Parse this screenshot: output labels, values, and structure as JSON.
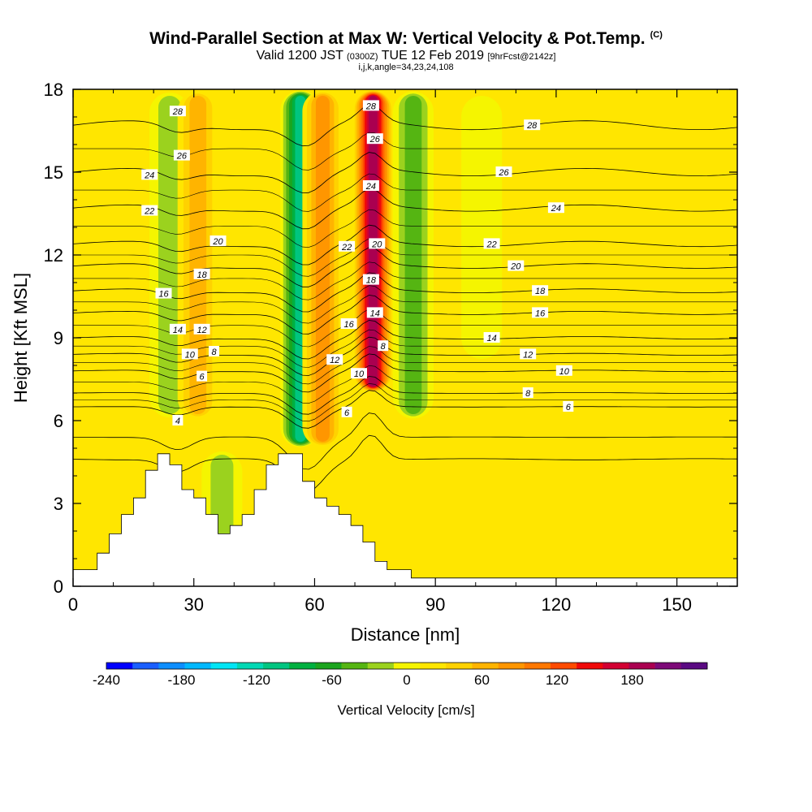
{
  "title": {
    "main": "Wind-Parallel Section at Max W: Vertical Velocity & Pot.Temp.",
    "main_suffix": "(C)",
    "valid_prefix": "Valid 1200 JST",
    "valid_utc": "(0300Z)",
    "valid_date": "TUE 12 Feb 2019",
    "forecast": "[9hrFcst@2142z]",
    "section_info": "i,j,k,angle=34,23,24,108"
  },
  "chart_data": {
    "type": "heatmap",
    "xlabel": "Distance [nm]",
    "ylabel": "Height [Kft MSL]",
    "xlim": [
      0,
      165
    ],
    "ylim": [
      0,
      18
    ],
    "x_ticks": [
      "0",
      "30",
      "60",
      "90",
      "120",
      "150"
    ],
    "y_ticks": [
      "0",
      "3",
      "6",
      "9",
      "12",
      "15",
      "18"
    ],
    "colorbar": {
      "label": "Vertical Velocity [cm/s]",
      "min": -240,
      "max": 220,
      "step": 20,
      "tick_labels": [
        "-240",
        "-180",
        "-120",
        "-60",
        "0",
        "60",
        "120",
        "180"
      ],
      "colors": [
        "#0000ff",
        "#1a5fff",
        "#0d8eff",
        "#00b8ff",
        "#00e5f5",
        "#00d8b4",
        "#00c580",
        "#00b040",
        "#1ba51e",
        "#55b512",
        "#9bd21e",
        "#f5f500",
        "#ffe600",
        "#ffd200",
        "#ffb400",
        "#ff9600",
        "#ff7800",
        "#ff4b00",
        "#f00a0a",
        "#d20032",
        "#aa0050",
        "#7d0a78",
        "#5a0a82"
      ]
    },
    "velocity_features": [
      {
        "x": 24,
        "y": [
          6,
          18
        ],
        "value": -55
      },
      {
        "x": 31,
        "y": [
          6,
          18
        ],
        "value": 60
      },
      {
        "x": 37,
        "y": [
          0,
          5
        ],
        "value": -45
      },
      {
        "x": 56.5,
        "y": [
          5,
          18
        ],
        "value": -125
      },
      {
        "x": 62,
        "y": [
          5,
          18
        ],
        "value": 90
      },
      {
        "x": 74.5,
        "y": [
          7,
          18
        ],
        "value": 190
      },
      {
        "x": 84.5,
        "y": [
          6,
          18
        ],
        "value": -75
      },
      {
        "x": 101.5,
        "y": [
          8,
          18
        ],
        "value": -25
      },
      {
        "x": 143,
        "y": [
          0,
          5
        ],
        "value": 25
      }
    ],
    "terrain": [
      [
        0,
        0.6
      ],
      [
        6,
        0.6
      ],
      [
        6,
        1.2
      ],
      [
        9,
        1.2
      ],
      [
        9,
        1.9
      ],
      [
        12,
        1.9
      ],
      [
        12,
        2.6
      ],
      [
        15,
        2.6
      ],
      [
        15,
        3.2
      ],
      [
        18,
        3.2
      ],
      [
        18,
        4.2
      ],
      [
        21,
        4.2
      ],
      [
        21,
        4.8
      ],
      [
        24,
        4.8
      ],
      [
        24,
        4.4
      ],
      [
        27,
        4.4
      ],
      [
        27,
        3.5
      ],
      [
        30,
        3.5
      ],
      [
        30,
        3.2
      ],
      [
        33,
        3.2
      ],
      [
        33,
        2.6
      ],
      [
        36,
        2.6
      ],
      [
        36,
        1.9
      ],
      [
        39,
        1.9
      ],
      [
        39,
        2.2
      ],
      [
        42,
        2.2
      ],
      [
        42,
        2.6
      ],
      [
        45,
        2.6
      ],
      [
        45,
        3.5
      ],
      [
        48,
        3.5
      ],
      [
        48,
        4.4
      ],
      [
        51,
        4.4
      ],
      [
        51,
        4.8
      ],
      [
        57,
        4.8
      ],
      [
        57,
        3.8
      ],
      [
        60,
        3.8
      ],
      [
        60,
        3.2
      ],
      [
        63,
        3.2
      ],
      [
        63,
        2.9
      ],
      [
        66,
        2.9
      ],
      [
        66,
        2.6
      ],
      [
        69,
        2.6
      ],
      [
        69,
        2.2
      ],
      [
        72,
        2.2
      ],
      [
        72,
        1.6
      ],
      [
        75,
        1.6
      ],
      [
        75,
        0.9
      ],
      [
        78,
        0.9
      ],
      [
        78,
        0.6
      ],
      [
        84,
        0.6
      ],
      [
        84,
        0.3
      ],
      [
        165,
        0.3
      ]
    ],
    "theta_levels": [
      4,
      6,
      8,
      10,
      12,
      14,
      16,
      18,
      20,
      22,
      24,
      26,
      28
    ],
    "theta_profile_east": [
      {
        "level": 6,
        "height": 6.5
      },
      {
        "level": 8,
        "height": 7.0
      },
      {
        "level": 10,
        "height": 7.8
      },
      {
        "level": 12,
        "height": 8.4
      },
      {
        "level": 14,
        "height": 9.0
      },
      {
        "level": 16,
        "height": 9.9
      },
      {
        "level": 18,
        "height": 10.7
      },
      {
        "level": 20,
        "height": 11.6
      },
      {
        "level": 22,
        "height": 12.4
      },
      {
        "level": 24,
        "height": 13.7
      },
      {
        "level": 26,
        "height": 15.0
      },
      {
        "level": 28,
        "height": 16.7
      }
    ],
    "contour_labels": [
      {
        "text": "28",
        "x": 26,
        "y": 17.2
      },
      {
        "text": "26",
        "x": 27,
        "y": 15.6
      },
      {
        "text": "24",
        "x": 19,
        "y": 14.9
      },
      {
        "text": "22",
        "x": 19,
        "y": 13.6
      },
      {
        "text": "20",
        "x": 36,
        "y": 12.5
      },
      {
        "text": "18",
        "x": 32,
        "y": 11.3
      },
      {
        "text": "16",
        "x": 22.5,
        "y": 10.6
      },
      {
        "text": "14",
        "x": 26,
        "y": 9.3
      },
      {
        "text": "12",
        "x": 32,
        "y": 9.3
      },
      {
        "text": "10",
        "x": 29,
        "y": 8.4
      },
      {
        "text": "8",
        "x": 35,
        "y": 8.5
      },
      {
        "text": "6",
        "x": 32,
        "y": 7.6
      },
      {
        "text": "4",
        "x": 26,
        "y": 6.0
      },
      {
        "text": "28",
        "x": 74,
        "y": 17.4
      },
      {
        "text": "26",
        "x": 75,
        "y": 16.2
      },
      {
        "text": "24",
        "x": 74,
        "y": 14.5
      },
      {
        "text": "22",
        "x": 68,
        "y": 12.3
      },
      {
        "text": "20",
        "x": 75.5,
        "y": 12.4
      },
      {
        "text": "18",
        "x": 74,
        "y": 11.1
      },
      {
        "text": "16",
        "x": 68.5,
        "y": 9.5
      },
      {
        "text": "14",
        "x": 75,
        "y": 9.9
      },
      {
        "text": "12",
        "x": 65,
        "y": 8.2
      },
      {
        "text": "10",
        "x": 71,
        "y": 7.7
      },
      {
        "text": "8",
        "x": 77,
        "y": 8.7
      },
      {
        "text": "6",
        "x": 68,
        "y": 6.3
      },
      {
        "text": "28",
        "x": 114,
        "y": 16.7
      },
      {
        "text": "26",
        "x": 107,
        "y": 15.0
      },
      {
        "text": "24",
        "x": 120,
        "y": 13.7
      },
      {
        "text": "22",
        "x": 104,
        "y": 12.4
      },
      {
        "text": "20",
        "x": 110,
        "y": 11.6
      },
      {
        "text": "18",
        "x": 116,
        "y": 10.7
      },
      {
        "text": "16",
        "x": 116,
        "y": 9.9
      },
      {
        "text": "14",
        "x": 104,
        "y": 9.0
      },
      {
        "text": "12",
        "x": 113,
        "y": 8.4
      },
      {
        "text": "10",
        "x": 122,
        "y": 7.8
      },
      {
        "text": "8",
        "x": 113,
        "y": 7.0
      },
      {
        "text": "6",
        "x": 123,
        "y": 6.5
      }
    ]
  }
}
